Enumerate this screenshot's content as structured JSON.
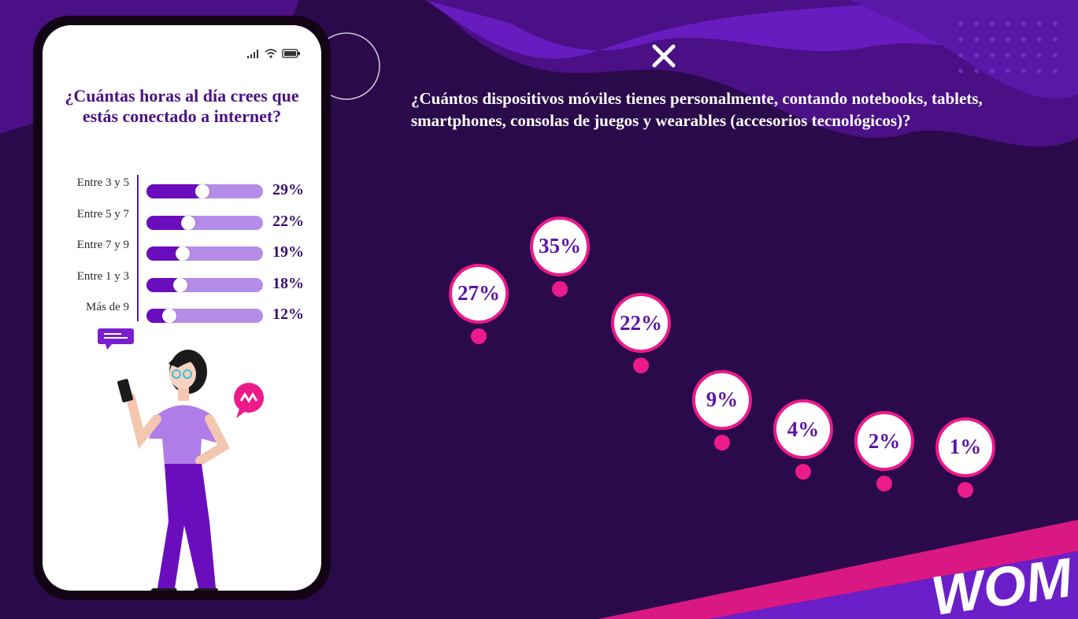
{
  "phone": {
    "title": "¿Cuántas horas al día crees que estás conectado a internet?"
  },
  "main": {
    "question": "¿Cuántos dispositivos móviles tienes personalmente, contando notebooks, tablets, smartphones, consolas de juegos y wearables (accesorios tecnológicos)?"
  },
  "brand": {
    "logo_text": "WOM",
    "colors": {
      "purple": "#5b16a8",
      "magenta": "#ec1a8a",
      "background": "#2a0a4a",
      "bar_track": "#b58ce8",
      "bar_fill": "#6a0dbd"
    }
  },
  "icons": [
    "signal-icon",
    "wifi-icon",
    "battery-icon",
    "close-icon",
    "chat-bubble-icon",
    "speech-bubble-icon"
  ],
  "chart_data": [
    {
      "type": "bar",
      "orientation": "horizontal",
      "categories": [
        "Entre 3 y 5",
        "Entre 5 y 7",
        "Entre 7 y 9",
        "Entre 1 y 3",
        "Más de 9"
      ],
      "values": [
        29,
        22,
        19,
        18,
        12
      ],
      "value_labels": [
        "29%",
        "22%",
        "19%",
        "18%",
        "12%"
      ],
      "unit": "%",
      "xlim": [
        0,
        60
      ]
    },
    {
      "type": "scatter",
      "values": [
        27,
        35,
        22,
        9,
        4,
        2,
        1
      ],
      "value_labels": [
        "27%",
        "35%",
        "22%",
        "9%",
        "4%",
        "2%",
        "1%"
      ],
      "unit": "%",
      "ylim": [
        0,
        38
      ]
    }
  ]
}
